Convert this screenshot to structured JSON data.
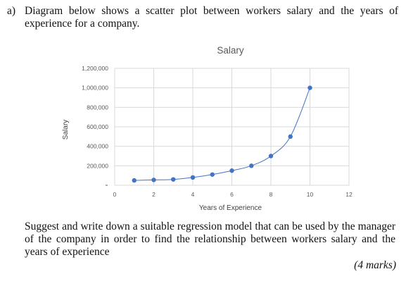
{
  "question": {
    "label": "a)",
    "text": "Diagram below shows a scatter plot between workers salary and the years of experience for a company.",
    "prompt": "Suggest and write down a suitable regression model that can be used by the manager of the company in order to find the relationship between workers salary and the years of experience",
    "marks": "(4 marks)"
  },
  "chart_data": {
    "type": "scatter",
    "title": "Salary",
    "xlabel": "Years of Experience",
    "ylabel": "Salary",
    "xlim": [
      0,
      12
    ],
    "ylim": [
      0,
      1200000
    ],
    "x_ticks": [
      "0",
      "2",
      "4",
      "6",
      "8",
      "10",
      "12"
    ],
    "y_ticks": [
      "",
      "200,000",
      "400,000",
      "600,000",
      "800,000",
      "1,000,000",
      "1,200,000"
    ],
    "grid": true,
    "smooth_line": true,
    "marker_color": "#4472C4",
    "line_color": "#4472C4",
    "x": [
      1,
      2,
      3,
      4,
      5,
      6,
      7,
      8,
      9,
      10
    ],
    "y": [
      50000,
      55000,
      60000,
      80000,
      110000,
      150000,
      200000,
      300000,
      500000,
      1000000
    ]
  }
}
